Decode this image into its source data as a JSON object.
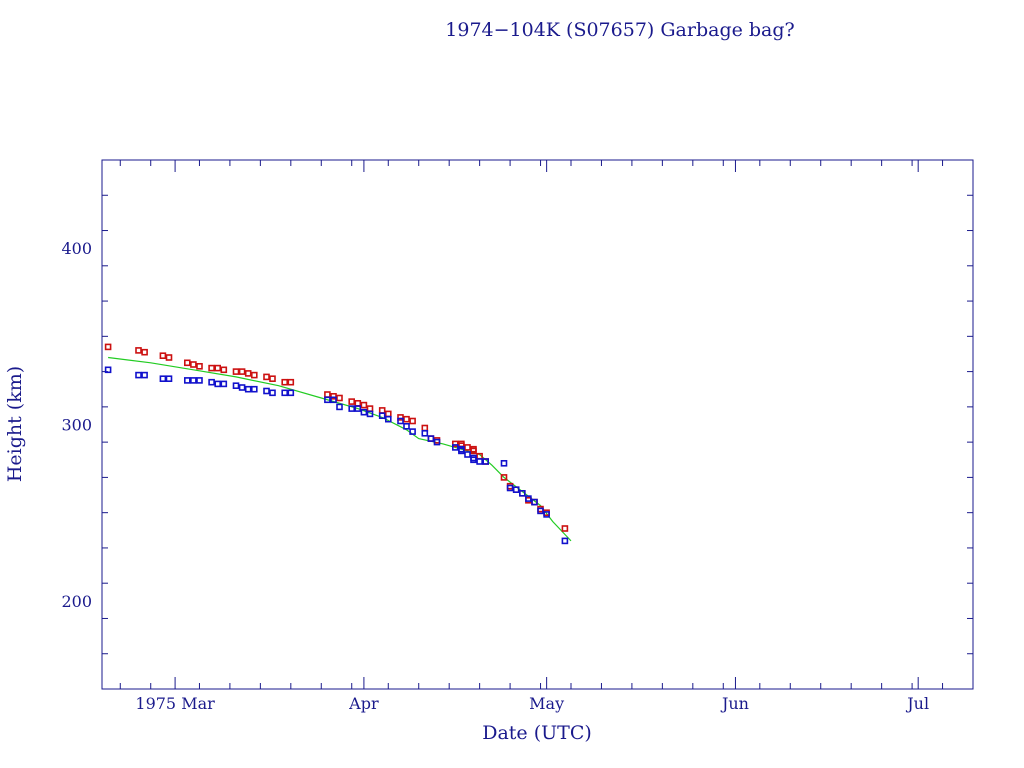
{
  "chart_data": {
    "type": "scatter",
    "title": "1974−104K (S07657) Garbage bag?",
    "xlabel": "Date (UTC)",
    "ylabel": "Height (km)",
    "x_type": "date",
    "xlim": [
      "1975-02-17",
      "1975-07-10"
    ],
    "ylim": [
      150,
      450
    ],
    "x_ticks": [
      {
        "date": "1975-03-01",
        "label": "1975 Mar"
      },
      {
        "date": "1975-04-01",
        "label": "Apr"
      },
      {
        "date": "1975-05-01",
        "label": "May"
      },
      {
        "date": "1975-06-01",
        "label": "Jun"
      },
      {
        "date": "1975-07-01",
        "label": "Jul"
      }
    ],
    "y_ticks": [
      200,
      300,
      400
    ],
    "grid": false,
    "legend": "none",
    "colors": {
      "frame": "#1a1a8c",
      "apogee": "#cc1111",
      "perigee": "#1111cc",
      "mean": "#22cc22"
    },
    "series": [
      {
        "kind": "points",
        "color_key": "apogee",
        "x": [
          "1975-02-18",
          "1975-02-23",
          "1975-02-24",
          "1975-02-27",
          "1975-02-28",
          "1975-03-03",
          "1975-03-04",
          "1975-03-05",
          "1975-03-07",
          "1975-03-08",
          "1975-03-09",
          "1975-03-11",
          "1975-03-12",
          "1975-03-13",
          "1975-03-14",
          "1975-03-16",
          "1975-03-17",
          "1975-03-19",
          "1975-03-20",
          "1975-03-26",
          "1975-03-27",
          "1975-03-28",
          "1975-03-30",
          "1975-03-31",
          "1975-04-01",
          "1975-04-02",
          "1975-04-04",
          "1975-04-05",
          "1975-04-07",
          "1975-04-08",
          "1975-04-09",
          "1975-04-11",
          "1975-04-12",
          "1975-04-13",
          "1975-04-16",
          "1975-04-17",
          "1975-04-17",
          "1975-04-18",
          "1975-04-19",
          "1975-04-19",
          "1975-04-20",
          "1975-04-21",
          "1975-04-24",
          "1975-04-25",
          "1975-04-26",
          "1975-04-27",
          "1975-04-28",
          "1975-04-29",
          "1975-04-30",
          "1975-05-01",
          "1975-05-04"
        ],
        "y": [
          344,
          342,
          341,
          339,
          338,
          335,
          334,
          333,
          332,
          332,
          331,
          330,
          330,
          329,
          328,
          327,
          326,
          324,
          324,
          317,
          316,
          315,
          313,
          312,
          311,
          309,
          308,
          306,
          304,
          303,
          302,
          298,
          292,
          291,
          289,
          288,
          289,
          287,
          286,
          285,
          282,
          279,
          270,
          265,
          263,
          261,
          257,
          256,
          252,
          250,
          241
        ]
      },
      {
        "kind": "points",
        "color_key": "perigee",
        "x": [
          "1975-02-18",
          "1975-02-23",
          "1975-02-24",
          "1975-02-27",
          "1975-02-28",
          "1975-03-03",
          "1975-03-04",
          "1975-03-05",
          "1975-03-07",
          "1975-03-08",
          "1975-03-09",
          "1975-03-11",
          "1975-03-12",
          "1975-03-13",
          "1975-03-14",
          "1975-03-16",
          "1975-03-17",
          "1975-03-19",
          "1975-03-20",
          "1975-03-26",
          "1975-03-27",
          "1975-03-28",
          "1975-03-30",
          "1975-03-31",
          "1975-04-01",
          "1975-04-02",
          "1975-04-04",
          "1975-04-05",
          "1975-04-07",
          "1975-04-08",
          "1975-04-09",
          "1975-04-11",
          "1975-04-12",
          "1975-04-13",
          "1975-04-16",
          "1975-04-17",
          "1975-04-17",
          "1975-04-18",
          "1975-04-19",
          "1975-04-19",
          "1975-04-20",
          "1975-04-21",
          "1975-04-24",
          "1975-04-25",
          "1975-04-26",
          "1975-04-27",
          "1975-04-28",
          "1975-04-29",
          "1975-04-30",
          "1975-05-01",
          "1975-05-04"
        ],
        "y": [
          331,
          328,
          328,
          326,
          326,
          325,
          325,
          325,
          324,
          323,
          323,
          322,
          321,
          320,
          320,
          319,
          318,
          318,
          318,
          314,
          314,
          310,
          309,
          309,
          307,
          306,
          305,
          303,
          302,
          299,
          296,
          295,
          292,
          290,
          287,
          286,
          285,
          283,
          281,
          280,
          279,
          279,
          278,
          264,
          263,
          261,
          258,
          256,
          251,
          249,
          234
        ]
      },
      {
        "kind": "line",
        "color_key": "mean",
        "x": [
          "1975-02-18",
          "1975-02-25",
          "1975-03-04",
          "1975-03-11",
          "1975-03-18",
          "1975-03-25",
          "1975-03-31",
          "1975-04-04",
          "1975-04-08",
          "1975-04-10",
          "1975-04-14",
          "1975-04-17",
          "1975-04-20",
          "1975-04-22",
          "1975-04-24",
          "1975-04-27",
          "1975-04-30",
          "1975-05-02",
          "1975-05-05"
        ],
        "y": [
          338,
          335,
          331,
          327,
          322,
          315,
          309,
          304,
          297,
          292,
          289,
          286,
          283,
          277,
          270,
          262,
          254,
          245,
          234
        ]
      }
    ]
  }
}
